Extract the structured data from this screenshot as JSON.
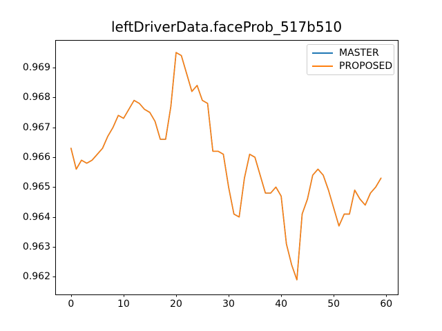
{
  "chart_data": {
    "type": "line",
    "title": "leftDriverData.faceProb_517b510",
    "xlabel": "",
    "ylabel": "",
    "grid": false,
    "background_color": "#ffffff",
    "spine_color": "#000000",
    "legend": {
      "position": "upper right",
      "border_color": "#cccccc",
      "entries": [
        "MASTER",
        "PROPOSED"
      ]
    },
    "xlim": [
      -3.0,
      62.2
    ],
    "ylim": [
      0.96141,
      0.96993
    ],
    "xticks": [
      0,
      10,
      20,
      30,
      40,
      50,
      60
    ],
    "xtick_labels": [
      "0",
      "10",
      "20",
      "30",
      "40",
      "50",
      "60"
    ],
    "yticks": [
      0.962,
      0.963,
      0.964,
      0.965,
      0.966,
      0.967,
      0.968,
      0.969
    ],
    "ytick_labels": [
      "0.962",
      "0.963",
      "0.964",
      "0.965",
      "0.966",
      "0.967",
      "0.968",
      "0.969"
    ],
    "x": [
      0,
      1,
      2,
      3,
      4,
      5,
      6,
      7,
      8,
      9,
      10,
      11,
      12,
      13,
      14,
      15,
      16,
      17,
      18,
      19,
      20,
      21,
      22,
      23,
      24,
      25,
      26,
      27,
      28,
      29,
      30,
      31,
      32,
      33,
      34,
      35,
      36,
      37,
      38,
      39,
      40,
      41,
      42,
      43,
      44,
      45,
      46,
      47,
      48,
      49,
      50,
      51,
      52,
      53,
      54,
      55,
      56,
      57,
      58,
      59
    ],
    "series": [
      {
        "name": "MASTER",
        "color": "#1f77b4",
        "values": [
          0.9663,
          0.9656,
          0.9659,
          0.9658,
          0.9659,
          0.9661,
          0.9663,
          0.9667,
          0.967,
          0.9674,
          0.9673,
          0.9676,
          0.9679,
          0.9678,
          0.9676,
          0.9675,
          0.9672,
          0.9666,
          0.9666,
          0.9677,
          0.9695,
          0.9694,
          0.9688,
          0.9682,
          0.9684,
          0.9679,
          0.9678,
          0.9662,
          0.9662,
          0.9661,
          0.965,
          0.9641,
          0.964,
          0.9653,
          0.9661,
          0.966,
          0.9654,
          0.9648,
          0.9648,
          0.965,
          0.9647,
          0.9631,
          0.9624,
          0.9619,
          0.9641,
          0.9646,
          0.9654,
          0.9656,
          0.9654,
          0.9649,
          0.9643,
          0.9637,
          0.9641,
          0.9641,
          0.9649,
          0.9646,
          0.9644,
          0.9648,
          0.965,
          0.9653
        ]
      },
      {
        "name": "PROPOSED",
        "color": "#ff7f0e",
        "values": [
          0.9663,
          0.9656,
          0.9659,
          0.9658,
          0.9659,
          0.9661,
          0.9663,
          0.9667,
          0.967,
          0.9674,
          0.9673,
          0.9676,
          0.9679,
          0.9678,
          0.9676,
          0.9675,
          0.9672,
          0.9666,
          0.9666,
          0.9677,
          0.9695,
          0.9694,
          0.9688,
          0.9682,
          0.9684,
          0.9679,
          0.9678,
          0.9662,
          0.9662,
          0.9661,
          0.965,
          0.9641,
          0.964,
          0.9653,
          0.9661,
          0.966,
          0.9654,
          0.9648,
          0.9648,
          0.965,
          0.9647,
          0.9631,
          0.9624,
          0.9619,
          0.9641,
          0.9646,
          0.9654,
          0.9656,
          0.9654,
          0.9649,
          0.9643,
          0.9637,
          0.9641,
          0.9641,
          0.9649,
          0.9646,
          0.9644,
          0.9648,
          0.965,
          0.9653
        ]
      }
    ]
  }
}
